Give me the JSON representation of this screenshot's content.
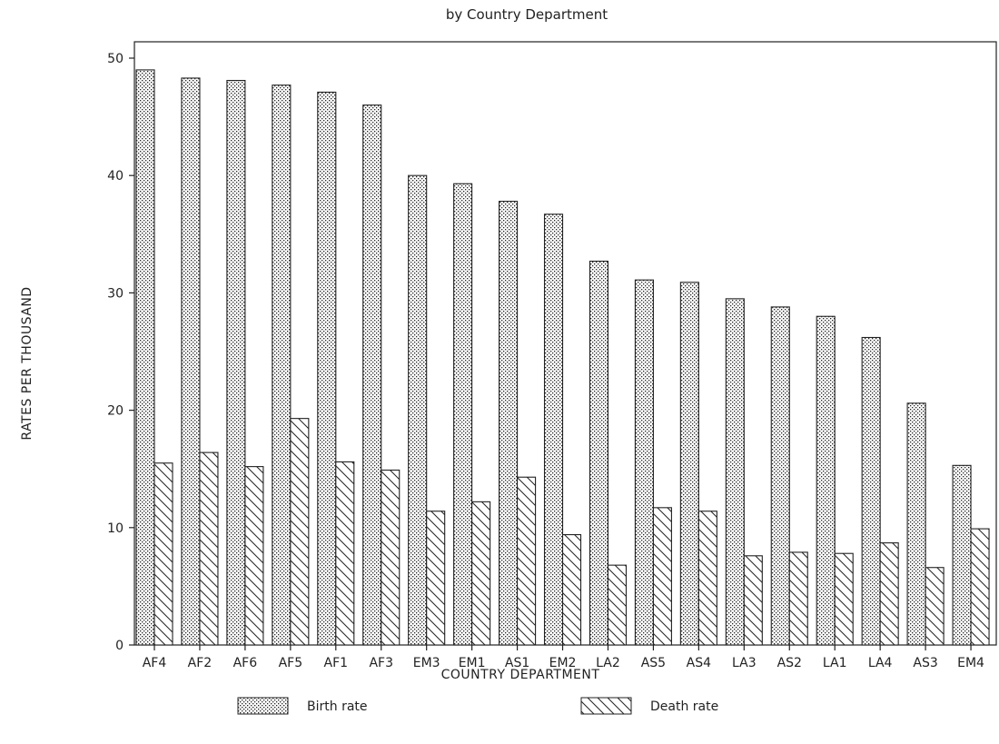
{
  "chart_data": {
    "type": "bar",
    "title": "by Country Department",
    "xlabel": "COUNTRY DEPARTMENT",
    "ylabel": "RATES PER THOUSAND",
    "ylim": [
      0,
      50
    ],
    "yticks": [
      0,
      10,
      20,
      30,
      40,
      50
    ],
    "grid": false,
    "legend_position": "bottom",
    "categories": [
      "AF4",
      "AF2",
      "AF6",
      "AF5",
      "AF1",
      "AF3",
      "EM3",
      "EM1",
      "AS1",
      "EM2",
      "LA2",
      "AS5",
      "AS4",
      "LA3",
      "AS2",
      "LA1",
      "LA4",
      "AS3",
      "EM4"
    ],
    "series": [
      {
        "name": "Birth rate",
        "pattern": "dots",
        "values": [
          49.0,
          48.3,
          48.1,
          47.7,
          47.1,
          46.0,
          40.0,
          39.3,
          37.8,
          36.7,
          32.7,
          31.1,
          30.9,
          29.5,
          28.8,
          28.0,
          26.2,
          20.6,
          15.3
        ]
      },
      {
        "name": "Death rate",
        "pattern": "diagonal",
        "values": [
          15.5,
          16.4,
          15.2,
          19.3,
          15.6,
          14.9,
          11.4,
          12.2,
          14.3,
          9.4,
          6.8,
          11.7,
          11.4,
          7.6,
          7.9,
          7.8,
          8.7,
          6.6,
          9.9
        ]
      }
    ]
  }
}
